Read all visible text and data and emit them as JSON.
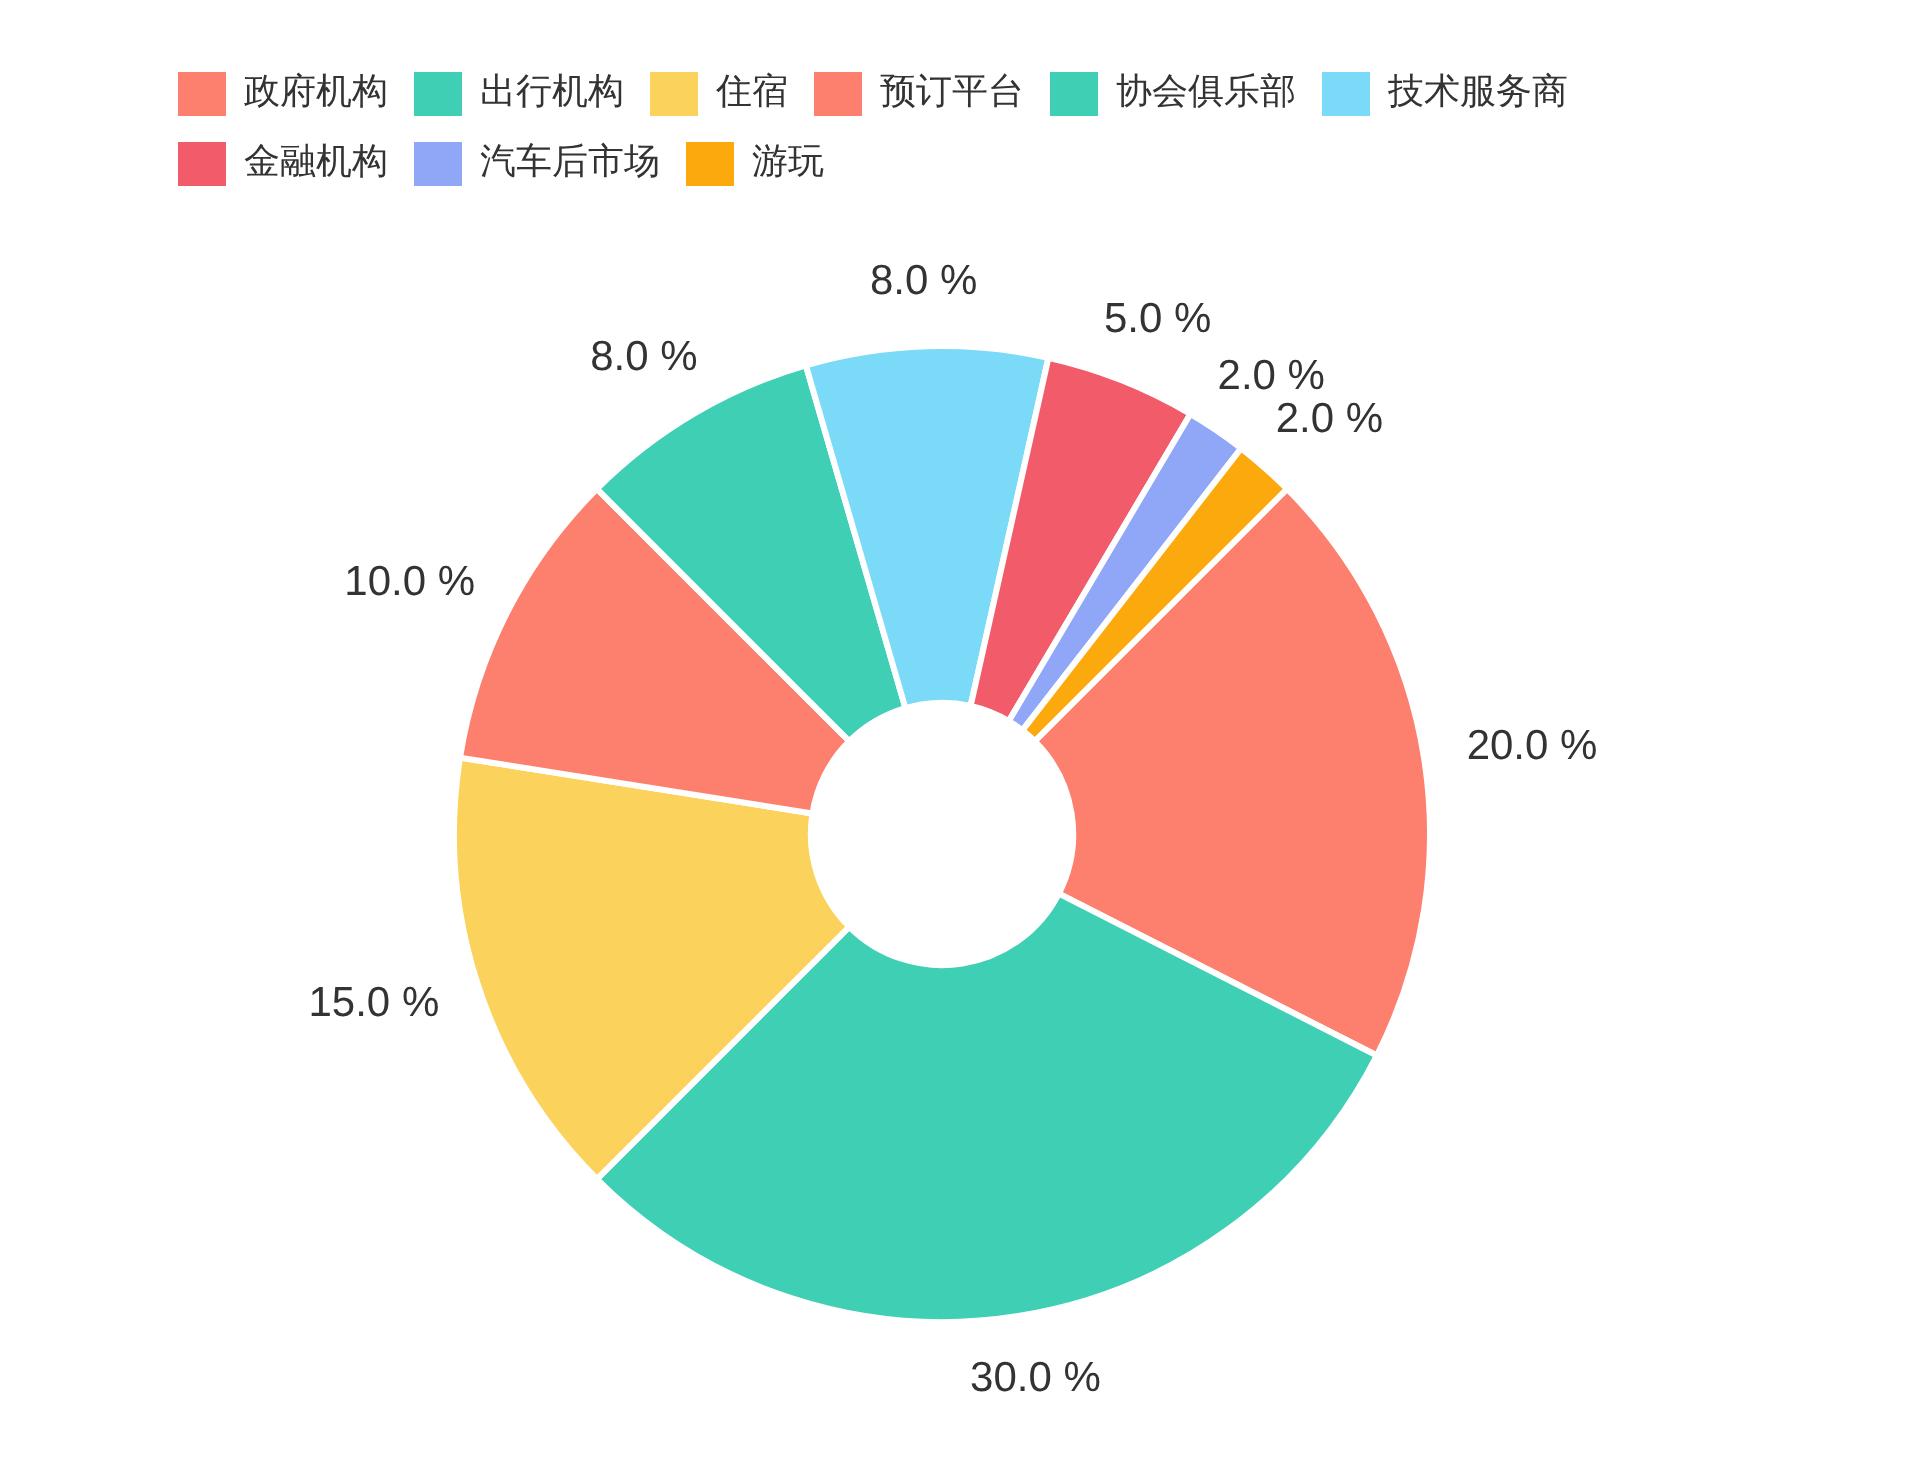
{
  "chart_data": {
    "type": "donut",
    "categories": [
      "政府机构",
      "出行机构",
      "住宿",
      "预订平台",
      "协会俱乐部",
      "技术服务商",
      "金融机构",
      "汽车后市场",
      "游玩"
    ],
    "values": [
      20,
      30,
      15,
      10,
      8,
      8,
      5,
      2,
      2
    ],
    "colors": [
      "#fd7f6e",
      "#3ecfb5",
      "#fbd35c",
      "#fd7f6e",
      "#3ecfb5",
      "#7cdaf9",
      "#f15b6a",
      "#8fa7f6",
      "#fca90e"
    ],
    "value_labels": [
      "20.0 %",
      "30.0 %",
      "15.0 %",
      "10.0 %",
      "8.0 %",
      "8.0 %",
      "5.0 %",
      "2.0 %",
      "2.0 %"
    ],
    "legend": "top left"
  }
}
